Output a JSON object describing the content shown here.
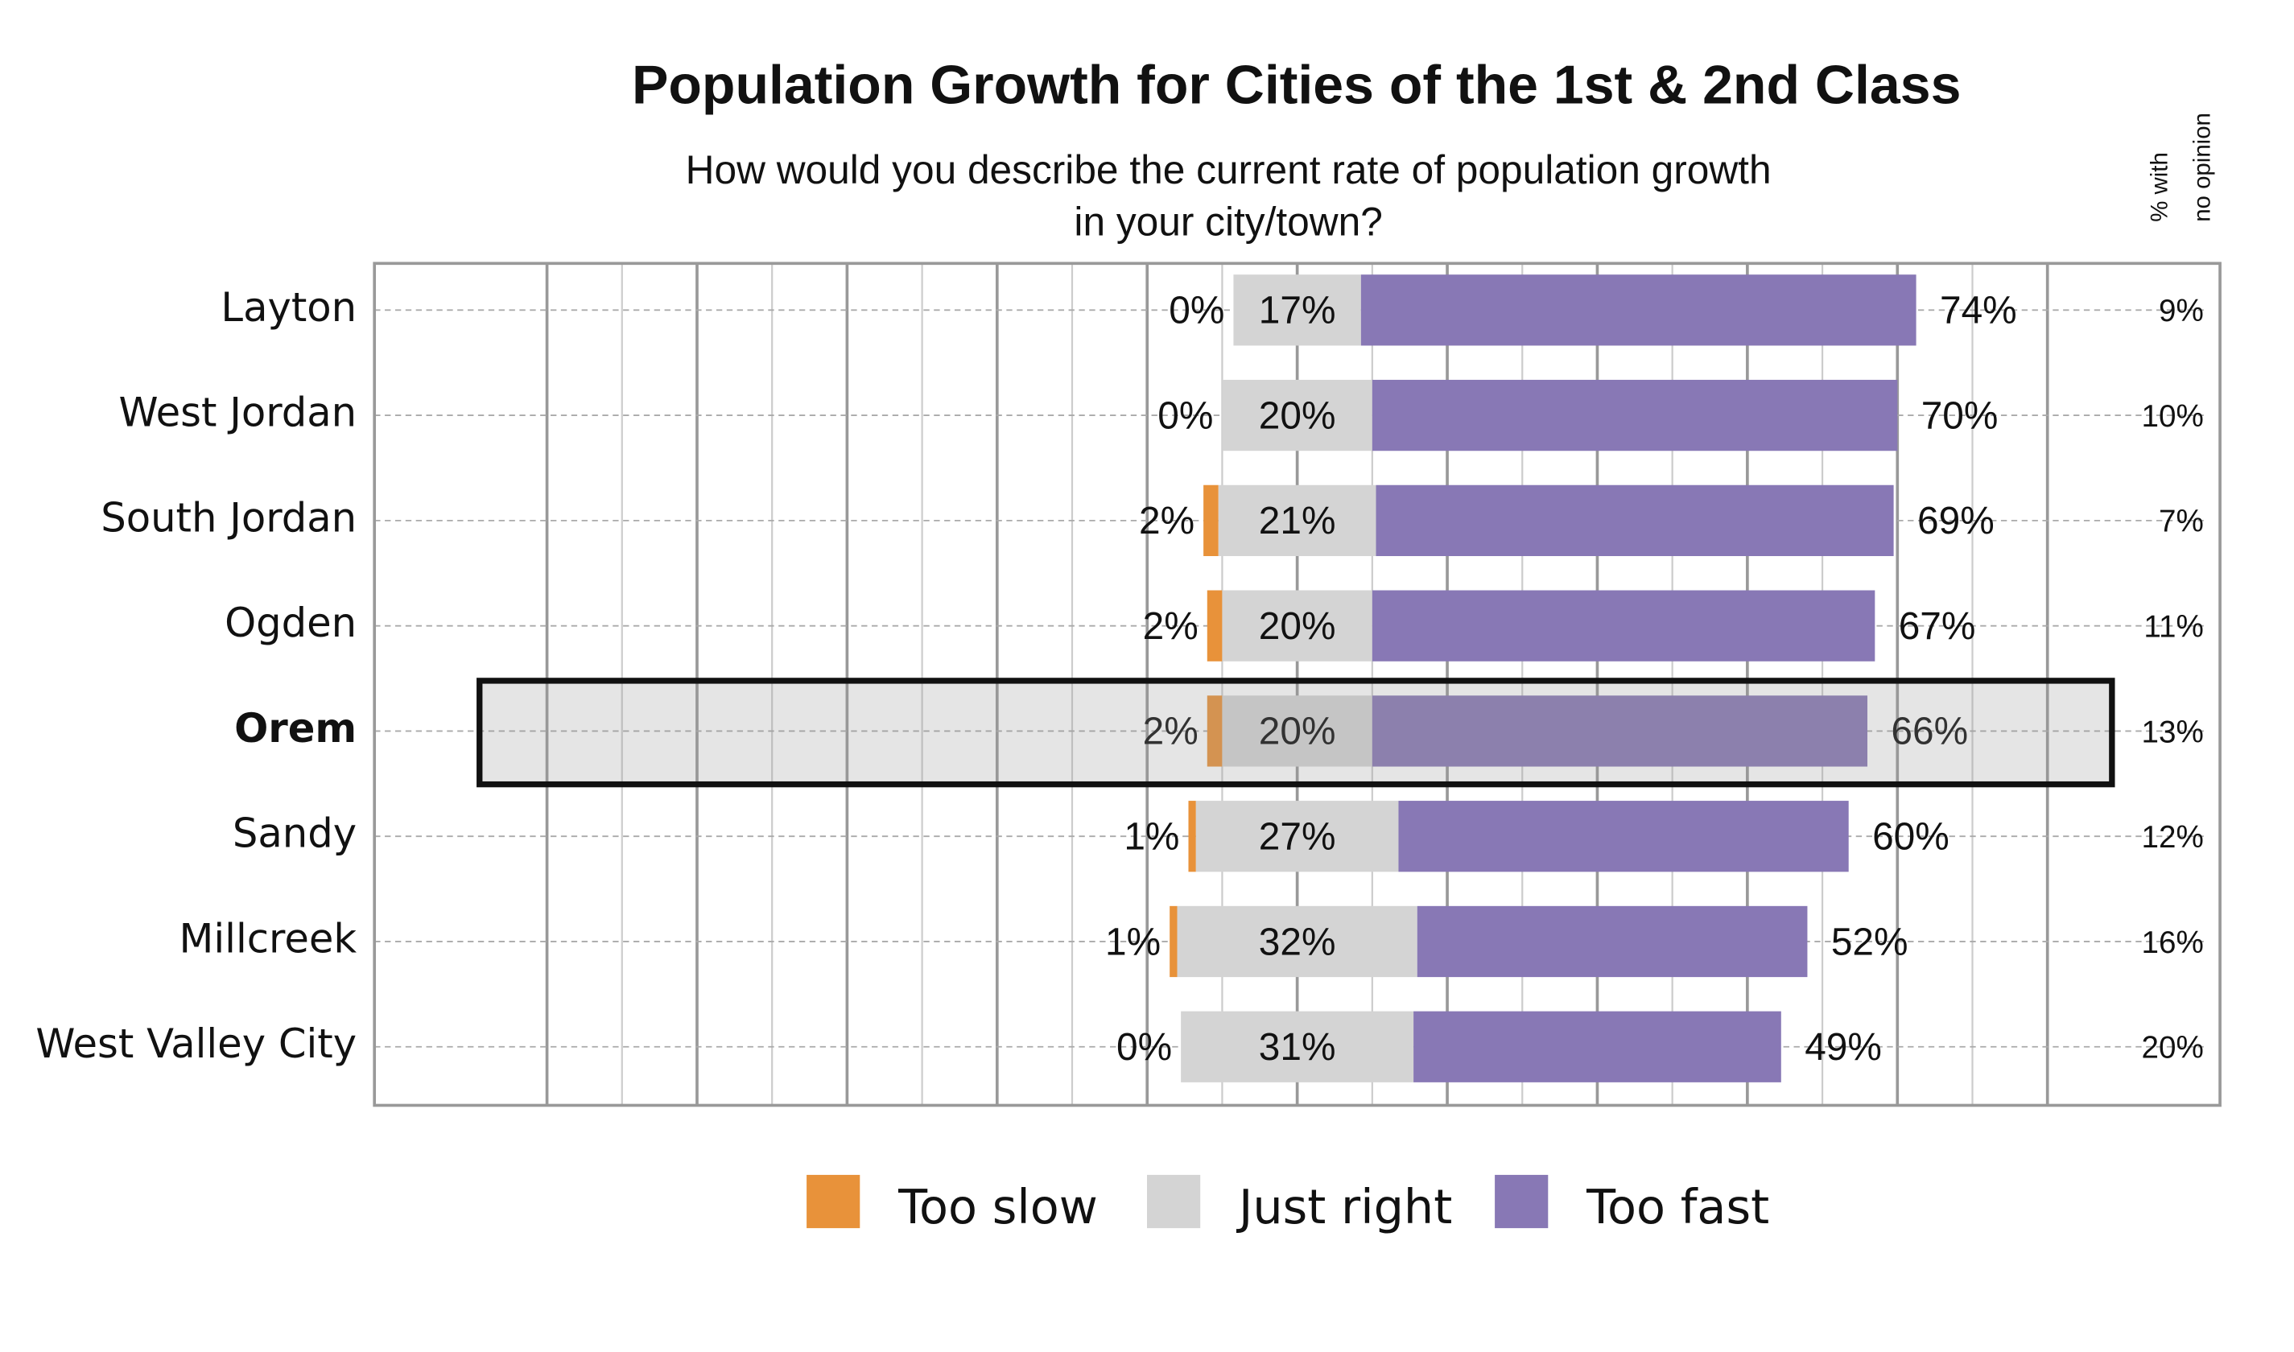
{
  "chart_data": {
    "type": "diverging-bar",
    "title": "Population Growth for Cities of the 1st & 2nd Class",
    "subtitle": [
      "How would you describe the current rate of population growth",
      "in your city/town?"
    ],
    "categories": [
      "Layton",
      "West Jordan",
      "South Jordan",
      "Ogden",
      "Orem",
      "Sandy",
      "Millcreek",
      "West Valley City"
    ],
    "highlight_index": 4,
    "series": [
      {
        "name": "Too slow",
        "color": "#e8923a",
        "values": [
          0,
          0,
          2,
          2,
          2,
          1,
          1,
          0
        ],
        "value_labels": [
          "0%",
          "0%",
          "2%",
          "2%",
          "2%",
          "1%",
          "1%",
          "0%"
        ]
      },
      {
        "name": "Just right",
        "color": "#d4d4d4",
        "values": [
          17,
          20,
          21,
          20,
          20,
          27,
          32,
          31
        ],
        "value_labels": [
          "17%",
          "20%",
          "21%",
          "20%",
          "20%",
          "27%",
          "32%",
          "31%"
        ]
      },
      {
        "name": "Too fast",
        "color": "#8878b5",
        "values": [
          74,
          70,
          69,
          67,
          66,
          60,
          52,
          49
        ],
        "value_labels": [
          "74%",
          "70%",
          "69%",
          "67%",
          "66%",
          "60%",
          "52%",
          "49%"
        ]
      }
    ],
    "no_opinion": {
      "header": [
        "% with",
        "no opinion"
      ],
      "values": [
        9,
        10,
        7,
        11,
        13,
        12,
        16,
        20
      ],
      "value_labels": [
        "9%",
        "10%",
        "7%",
        "11%",
        "13%",
        "12%",
        "16%",
        "20%"
      ]
    },
    "xlim": [
      -123,
      123
    ],
    "xticks": [
      -100,
      -90,
      -80,
      -70,
      -60,
      -50,
      -40,
      -30,
      -20,
      -10,
      0,
      10,
      20,
      30,
      40,
      50,
      60,
      70,
      80,
      90,
      100
    ],
    "grid": true
  }
}
